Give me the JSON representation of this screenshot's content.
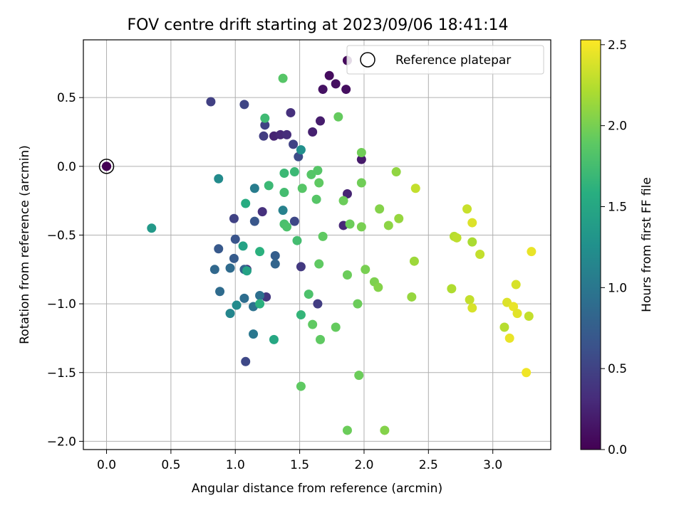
{
  "chart_data": {
    "type": "scatter",
    "title": "FOV centre drift starting at 2023/09/06 18:41:14",
    "xlabel": "Angular distance from reference (arcmin)",
    "ylabel": "Rotation from reference (arcmin)",
    "xlim": [
      -0.18,
      3.45
    ],
    "ylim": [
      -2.06,
      0.92
    ],
    "xticks": [
      0.0,
      0.5,
      1.0,
      1.5,
      2.0,
      2.5,
      3.0
    ],
    "xtick_labels": [
      "0.0",
      "0.5",
      "1.0",
      "1.5",
      "2.0",
      "2.5",
      "3.0"
    ],
    "yticks": [
      -2.0,
      -1.5,
      -1.0,
      -0.5,
      0.0,
      0.5
    ],
    "ytick_labels": [
      "−2.0",
      "−1.5",
      "−1.0",
      "−0.5",
      "0.0",
      "0.5"
    ],
    "grid": true,
    "legend": {
      "position": "top-right",
      "entries": [
        "Reference platepar"
      ]
    },
    "reference_point": {
      "x": 0.0,
      "y": 0.0,
      "hours": 0.0
    },
    "colorbar": {
      "label": "Hours from first FF file",
      "colormap": "viridis",
      "min": 0.0,
      "max": 2.53,
      "ticks": [
        0.0,
        0.5,
        1.0,
        1.5,
        2.0,
        2.5
      ],
      "tick_labels": [
        "0.0",
        "0.5",
        "1.0",
        "1.5",
        "2.0",
        "2.5"
      ]
    },
    "series": [
      {
        "marker": "filled-circle",
        "points": [
          {
            "x": 0.0,
            "y": 0.0,
            "h": 0.0
          },
          {
            "x": 1.87,
            "y": 0.77,
            "h": 0.05
          },
          {
            "x": 1.73,
            "y": 0.66,
            "h": 0.08
          },
          {
            "x": 1.78,
            "y": 0.6,
            "h": 0.1
          },
          {
            "x": 1.68,
            "y": 0.56,
            "h": 0.12
          },
          {
            "x": 1.86,
            "y": 0.56,
            "h": 0.1
          },
          {
            "x": 1.98,
            "y": 0.05,
            "h": 0.18
          },
          {
            "x": 1.66,
            "y": 0.33,
            "h": 0.2
          },
          {
            "x": 1.6,
            "y": 0.25,
            "h": 0.23
          },
          {
            "x": 1.87,
            "y": -0.2,
            "h": 0.25
          },
          {
            "x": 1.84,
            "y": -0.43,
            "h": 0.28
          },
          {
            "x": 1.3,
            "y": 0.22,
            "h": 0.25
          },
          {
            "x": 1.35,
            "y": 0.23,
            "h": 0.28
          },
          {
            "x": 1.4,
            "y": 0.23,
            "h": 0.32
          },
          {
            "x": 1.43,
            "y": 0.39,
            "h": 0.35
          },
          {
            "x": 1.21,
            "y": -0.33,
            "h": 0.35
          },
          {
            "x": 1.09,
            "y": -0.75,
            "h": 0.37
          },
          {
            "x": 1.24,
            "y": -0.95,
            "h": 0.4
          },
          {
            "x": 1.51,
            "y": -0.73,
            "h": 0.42
          },
          {
            "x": 1.64,
            "y": -1.0,
            "h": 0.45
          },
          {
            "x": 1.22,
            "y": 0.22,
            "h": 0.45
          },
          {
            "x": 1.23,
            "y": 0.3,
            "h": 0.5
          },
          {
            "x": 1.45,
            "y": 0.16,
            "h": 0.5
          },
          {
            "x": 0.81,
            "y": 0.47,
            "h": 0.48
          },
          {
            "x": 1.07,
            "y": 0.45,
            "h": 0.52
          },
          {
            "x": 0.99,
            "y": -0.38,
            "h": 0.5
          },
          {
            "x": 1.46,
            "y": -0.4,
            "h": 0.55
          },
          {
            "x": 1.08,
            "y": -1.42,
            "h": 0.55
          },
          {
            "x": 1.49,
            "y": 0.07,
            "h": 0.58
          },
          {
            "x": 1.0,
            "y": -0.53,
            "h": 0.65
          },
          {
            "x": 1.15,
            "y": -0.4,
            "h": 0.68
          },
          {
            "x": 0.87,
            "y": -0.6,
            "h": 0.7
          },
          {
            "x": 0.99,
            "y": -0.67,
            "h": 0.72
          },
          {
            "x": 1.31,
            "y": -0.65,
            "h": 0.75
          },
          {
            "x": 1.07,
            "y": -0.75,
            "h": 0.8
          },
          {
            "x": 1.31,
            "y": -0.71,
            "h": 0.82
          },
          {
            "x": 0.84,
            "y": -0.75,
            "h": 0.85
          },
          {
            "x": 0.96,
            "y": -0.74,
            "h": 0.88
          },
          {
            "x": 0.88,
            "y": -0.91,
            "h": 0.88
          },
          {
            "x": 1.07,
            "y": -0.96,
            "h": 0.9
          },
          {
            "x": 1.19,
            "y": -0.94,
            "h": 0.92
          },
          {
            "x": 1.14,
            "y": -1.02,
            "h": 0.95
          },
          {
            "x": 1.14,
            "y": -1.22,
            "h": 1.0
          },
          {
            "x": 1.15,
            "y": -0.16,
            "h": 1.05
          },
          {
            "x": 1.37,
            "y": -0.32,
            "h": 1.1
          },
          {
            "x": 0.96,
            "y": -1.07,
            "h": 1.15
          },
          {
            "x": 1.01,
            "y": -1.01,
            "h": 1.2
          },
          {
            "x": 0.87,
            "y": -0.09,
            "h": 1.2
          },
          {
            "x": 1.51,
            "y": 0.12,
            "h": 1.25
          },
          {
            "x": 0.35,
            "y": -0.45,
            "h": 1.35
          },
          {
            "x": 1.06,
            "y": -0.58,
            "h": 1.45
          },
          {
            "x": 1.09,
            "y": -0.76,
            "h": 1.45
          },
          {
            "x": 1.3,
            "y": -1.26,
            "h": 1.5
          },
          {
            "x": 1.08,
            "y": -0.27,
            "h": 1.55
          },
          {
            "x": 1.19,
            "y": -0.62,
            "h": 1.6
          },
          {
            "x": 1.19,
            "y": -1.0,
            "h": 1.6
          },
          {
            "x": 1.51,
            "y": -1.08,
            "h": 1.65
          },
          {
            "x": 1.26,
            "y": -0.14,
            "h": 1.7
          },
          {
            "x": 1.38,
            "y": -0.05,
            "h": 1.7
          },
          {
            "x": 1.46,
            "y": -0.04,
            "h": 1.7
          },
          {
            "x": 1.23,
            "y": 0.35,
            "h": 1.72
          },
          {
            "x": 1.38,
            "y": -0.19,
            "h": 1.75
          },
          {
            "x": 1.48,
            "y": -0.54,
            "h": 1.75
          },
          {
            "x": 1.38,
            "y": -0.42,
            "h": 1.78
          },
          {
            "x": 1.4,
            "y": -0.44,
            "h": 1.8
          },
          {
            "x": 1.57,
            "y": -0.93,
            "h": 1.8
          },
          {
            "x": 1.37,
            "y": 0.64,
            "h": 1.85
          },
          {
            "x": 1.52,
            "y": -0.16,
            "h": 1.85
          },
          {
            "x": 1.59,
            "y": -0.06,
            "h": 1.85
          },
          {
            "x": 1.64,
            "y": -0.03,
            "h": 1.85
          },
          {
            "x": 1.63,
            "y": -0.24,
            "h": 1.85
          },
          {
            "x": 1.65,
            "y": -0.12,
            "h": 1.9
          },
          {
            "x": 1.68,
            "y": -0.51,
            "h": 1.9
          },
          {
            "x": 1.65,
            "y": -0.71,
            "h": 1.9
          },
          {
            "x": 1.6,
            "y": -1.15,
            "h": 1.9
          },
          {
            "x": 1.66,
            "y": -1.26,
            "h": 1.9
          },
          {
            "x": 1.51,
            "y": -1.6,
            "h": 1.9
          },
          {
            "x": 1.78,
            "y": -1.17,
            "h": 1.92
          },
          {
            "x": 1.8,
            "y": 0.36,
            "h": 1.92
          },
          {
            "x": 1.84,
            "y": -0.25,
            "h": 1.95
          },
          {
            "x": 1.89,
            "y": -0.42,
            "h": 1.95
          },
          {
            "x": 1.87,
            "y": -0.79,
            "h": 1.95
          },
          {
            "x": 1.95,
            "y": -1.0,
            "h": 1.95
          },
          {
            "x": 1.96,
            "y": -1.52,
            "h": 1.95
          },
          {
            "x": 1.87,
            "y": -1.92,
            "h": 1.95
          },
          {
            "x": 1.98,
            "y": 0.1,
            "h": 1.97
          },
          {
            "x": 1.98,
            "y": -0.12,
            "h": 1.97
          },
          {
            "x": 1.98,
            "y": -0.44,
            "h": 2.0
          },
          {
            "x": 2.01,
            "y": -0.75,
            "h": 2.0
          },
          {
            "x": 2.08,
            "y": -0.84,
            "h": 2.02
          },
          {
            "x": 2.11,
            "y": -0.88,
            "h": 2.05
          },
          {
            "x": 2.12,
            "y": -0.31,
            "h": 2.05
          },
          {
            "x": 2.16,
            "y": -1.92,
            "h": 2.05
          },
          {
            "x": 2.19,
            "y": -0.43,
            "h": 2.08
          },
          {
            "x": 2.25,
            "y": -0.04,
            "h": 2.1
          },
          {
            "x": 2.27,
            "y": -0.38,
            "h": 2.12
          },
          {
            "x": 2.37,
            "y": -0.95,
            "h": 2.12
          },
          {
            "x": 2.39,
            "y": -0.69,
            "h": 2.15
          },
          {
            "x": 2.4,
            "y": -0.16,
            "h": 2.3
          },
          {
            "x": 2.68,
            "y": -0.89,
            "h": 2.22
          },
          {
            "x": 2.7,
            "y": -0.51,
            "h": 2.25
          },
          {
            "x": 2.72,
            "y": -0.52,
            "h": 2.28
          },
          {
            "x": 2.8,
            "y": -0.31,
            "h": 2.32
          },
          {
            "x": 2.82,
            "y": -0.97,
            "h": 2.3
          },
          {
            "x": 2.84,
            "y": -0.41,
            "h": 2.4
          },
          {
            "x": 2.84,
            "y": -1.03,
            "h": 2.38
          },
          {
            "x": 2.84,
            "y": -0.55,
            "h": 2.2
          },
          {
            "x": 2.9,
            "y": -0.64,
            "h": 2.3
          },
          {
            "x": 3.09,
            "y": -1.17,
            "h": 2.25
          },
          {
            "x": 3.11,
            "y": -0.99,
            "h": 2.4
          },
          {
            "x": 3.13,
            "y": -1.25,
            "h": 2.45
          },
          {
            "x": 3.16,
            "y": -1.02,
            "h": 2.45
          },
          {
            "x": 3.18,
            "y": -0.86,
            "h": 2.38
          },
          {
            "x": 3.19,
            "y": -1.07,
            "h": 2.42
          },
          {
            "x": 3.26,
            "y": -1.5,
            "h": 2.48
          },
          {
            "x": 3.28,
            "y": -1.09,
            "h": 2.3
          },
          {
            "x": 3.3,
            "y": -0.62,
            "h": 2.45
          }
        ]
      }
    ]
  }
}
